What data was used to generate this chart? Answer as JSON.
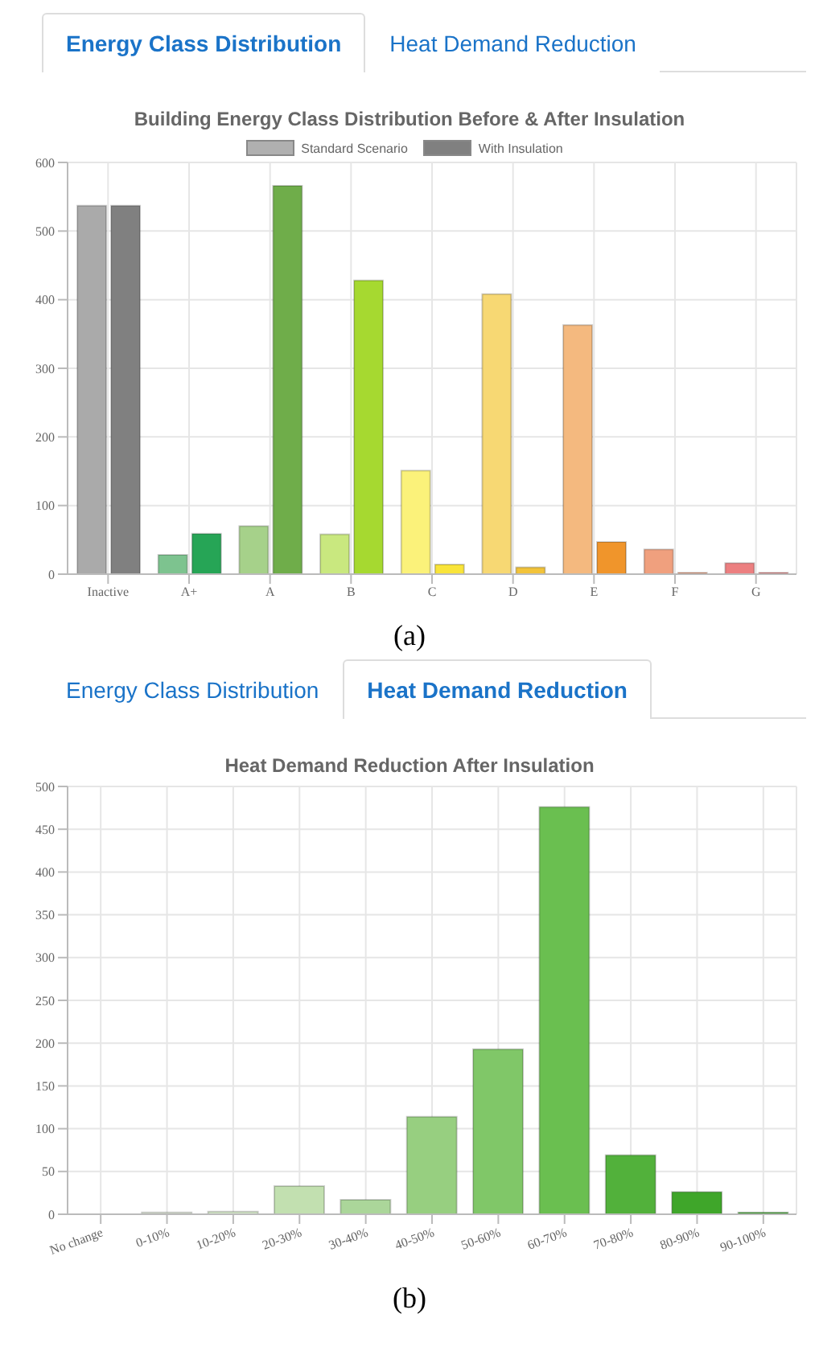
{
  "chart_data": [
    {
      "type": "bar",
      "title": "Building Energy Class Distribution Before & After Insulation",
      "annotations": [
        "Energy Class Distribution",
        "Heat Demand Reduction",
        "(a)"
      ],
      "categories": [
        "Inactive",
        "A+",
        "A",
        "B",
        "C",
        "D",
        "E",
        "F",
        "G"
      ],
      "series": [
        {
          "name": "Standard Scenario",
          "color": "#b0b0b0",
          "colors": [
            "#aaaaaa",
            "#7dc38f",
            "#a6d18a",
            "#c9e87f",
            "#fbf27a",
            "#f7d873",
            "#f4b97f",
            "#f0a07e",
            "#ec7f80"
          ],
          "values": [
            537,
            28,
            70,
            58,
            151,
            408,
            363,
            36,
            16
          ]
        },
        {
          "name": "With Insulation",
          "color": "#808080",
          "colors": [
            "#808080",
            "#26a556",
            "#6fad4a",
            "#a6d930",
            "#f9e43a",
            "#f2c33a",
            "#f0952b",
            "#ee7a48",
            "#e45252"
          ],
          "values": [
            537,
            59,
            566,
            428,
            14,
            10,
            47,
            2,
            2
          ]
        }
      ],
      "ylim": [
        0,
        600
      ],
      "yticks": [
        0,
        100,
        200,
        300,
        400,
        500,
        600
      ],
      "grid": true,
      "legend": "top"
    },
    {
      "type": "bar",
      "title": "Heat Demand Reduction After Insulation",
      "annotations": [
        "Energy Class Distribution",
        "Heat Demand Reduction",
        "(b)"
      ],
      "categories": [
        "No change",
        "0-10%",
        "10-20%",
        "20-30%",
        "30-40%",
        "40-50%",
        "50-60%",
        "60-70%",
        "70-80%",
        "80-90%",
        "90-100%"
      ],
      "values": [
        0,
        2,
        3,
        33,
        17,
        114,
        193,
        476,
        69,
        26,
        2
      ],
      "colors": [
        "#cccccc",
        "#e4efdc",
        "#d8ebcc",
        "#c2e0b0",
        "#abd69a",
        "#97cf80",
        "#80c768",
        "#6abf50",
        "#52b13b",
        "#3fa62a",
        "#36a024"
      ],
      "ylim": [
        0,
        500
      ],
      "yticks": [
        0,
        50,
        100,
        150,
        200,
        250,
        300,
        350,
        400,
        450,
        500
      ],
      "grid": true,
      "legend": false
    }
  ]
}
